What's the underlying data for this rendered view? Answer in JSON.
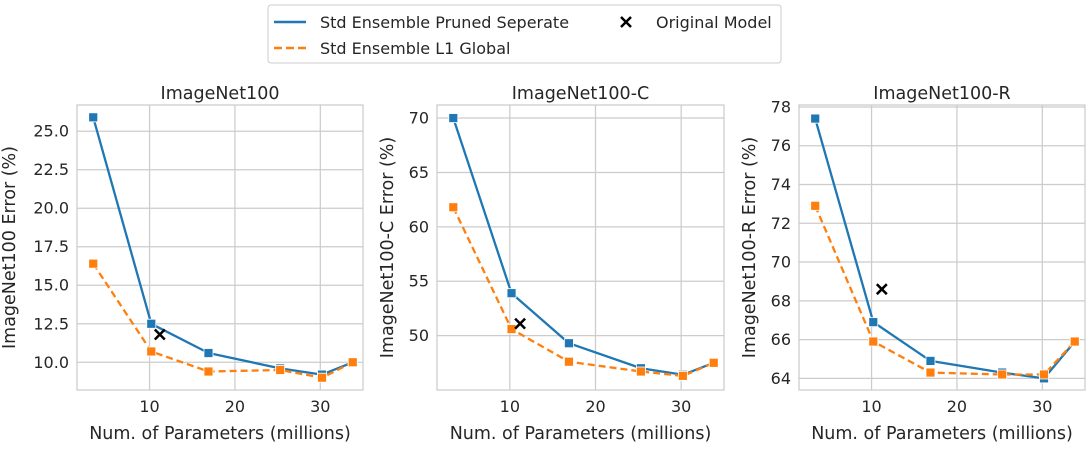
{
  "legend": {
    "entries": [
      {
        "label": "Std Ensemble Pruned Seperate",
        "color": "#1f77b4",
        "style": "solid"
      },
      {
        "label": "Std Ensemble L1 Global",
        "color": "#ff7f0e",
        "style": "dashed"
      },
      {
        "label": "Original Model",
        "color": "#000000",
        "style": "x-marker"
      }
    ]
  },
  "chart_data": [
    {
      "type": "line",
      "title": "ImageNet100",
      "xlabel": "Num. of Parameters (millions)",
      "ylabel": "ImageNet100 Error (%)",
      "xlim": [
        1.5,
        35
      ],
      "ylim": [
        8.2,
        26.7
      ],
      "xticks": [
        10,
        20,
        30
      ],
      "yticks": [
        10.0,
        12.5,
        15.0,
        17.5,
        20.0,
        22.5,
        25.0
      ],
      "ytick_labels": [
        "10.0",
        "12.5",
        "15.0",
        "17.5",
        "20.0",
        "22.5",
        "25.0"
      ],
      "grid": true,
      "series": [
        {
          "name": "Std Ensemble Pruned Seperate",
          "color": "#1f77b4",
          "style": "solid",
          "marker": "square",
          "x": [
            3.4,
            10.2,
            16.9,
            25.3,
            30.2,
            33.8
          ],
          "y": [
            25.9,
            12.5,
            10.6,
            9.6,
            9.2,
            10.0
          ]
        },
        {
          "name": "Std Ensemble L1 Global",
          "color": "#ff7f0e",
          "style": "dashed",
          "marker": "square",
          "x": [
            3.4,
            10.2,
            16.9,
            25.3,
            30.2,
            33.8
          ],
          "y": [
            16.4,
            10.7,
            9.4,
            9.5,
            9.0,
            10.0
          ]
        },
        {
          "name": "Original Model",
          "color": "#000000",
          "marker": "x",
          "x": [
            11.2
          ],
          "y": [
            11.8
          ]
        }
      ]
    },
    {
      "type": "line",
      "title": "ImageNet100-C",
      "xlabel": "Num. of Parameters (millions)",
      "ylabel": "ImageNet100-C Error (%)",
      "xlim": [
        1.5,
        35
      ],
      "ylim": [
        45.0,
        71.2
      ],
      "xticks": [
        10,
        20,
        30
      ],
      "yticks": [
        50,
        55,
        60,
        65,
        70
      ],
      "ytick_labels": [
        "50",
        "55",
        "60",
        "65",
        "70"
      ],
      "grid": true,
      "series": [
        {
          "name": "Std Ensemble Pruned Seperate",
          "color": "#1f77b4",
          "style": "solid",
          "marker": "square",
          "x": [
            3.4,
            10.2,
            16.9,
            25.3,
            30.2,
            33.8
          ],
          "y": [
            70.0,
            53.9,
            49.3,
            47.0,
            46.4,
            47.5
          ]
        },
        {
          "name": "Std Ensemble L1 Global",
          "color": "#ff7f0e",
          "style": "dashed",
          "marker": "square",
          "x": [
            3.4,
            10.2,
            16.9,
            25.3,
            30.2,
            33.8
          ],
          "y": [
            61.8,
            50.6,
            47.6,
            46.7,
            46.3,
            47.5
          ]
        },
        {
          "name": "Original Model",
          "color": "#000000",
          "marker": "x",
          "x": [
            11.2
          ],
          "y": [
            51.1
          ]
        }
      ]
    },
    {
      "type": "line",
      "title": "ImageNet100-R",
      "xlabel": "Num. of Parameters (millions)",
      "ylabel": "ImageNet100-R Error (%)",
      "xlim": [
        1.5,
        35
      ],
      "ylim": [
        63.4,
        78.1
      ],
      "xticks": [
        10,
        20,
        30
      ],
      "yticks": [
        64,
        66,
        68,
        70,
        72,
        74,
        76,
        78
      ],
      "ytick_labels": [
        "64",
        "66",
        "68",
        "70",
        "72",
        "74",
        "76",
        "78"
      ],
      "grid": true,
      "series": [
        {
          "name": "Std Ensemble Pruned Seperate",
          "color": "#1f77b4",
          "style": "solid",
          "marker": "square",
          "x": [
            3.4,
            10.2,
            16.9,
            25.3,
            30.2,
            33.8
          ],
          "y": [
            77.4,
            66.9,
            64.9,
            64.3,
            64.0,
            65.9
          ]
        },
        {
          "name": "Std Ensemble L1 Global",
          "color": "#ff7f0e",
          "style": "dashed",
          "marker": "square",
          "x": [
            3.4,
            10.2,
            16.9,
            25.3,
            30.2,
            33.8
          ],
          "y": [
            72.9,
            65.9,
            64.3,
            64.2,
            64.2,
            65.9
          ]
        },
        {
          "name": "Original Model",
          "color": "#000000",
          "marker": "x",
          "x": [
            11.2
          ],
          "y": [
            68.6
          ]
        }
      ]
    }
  ]
}
